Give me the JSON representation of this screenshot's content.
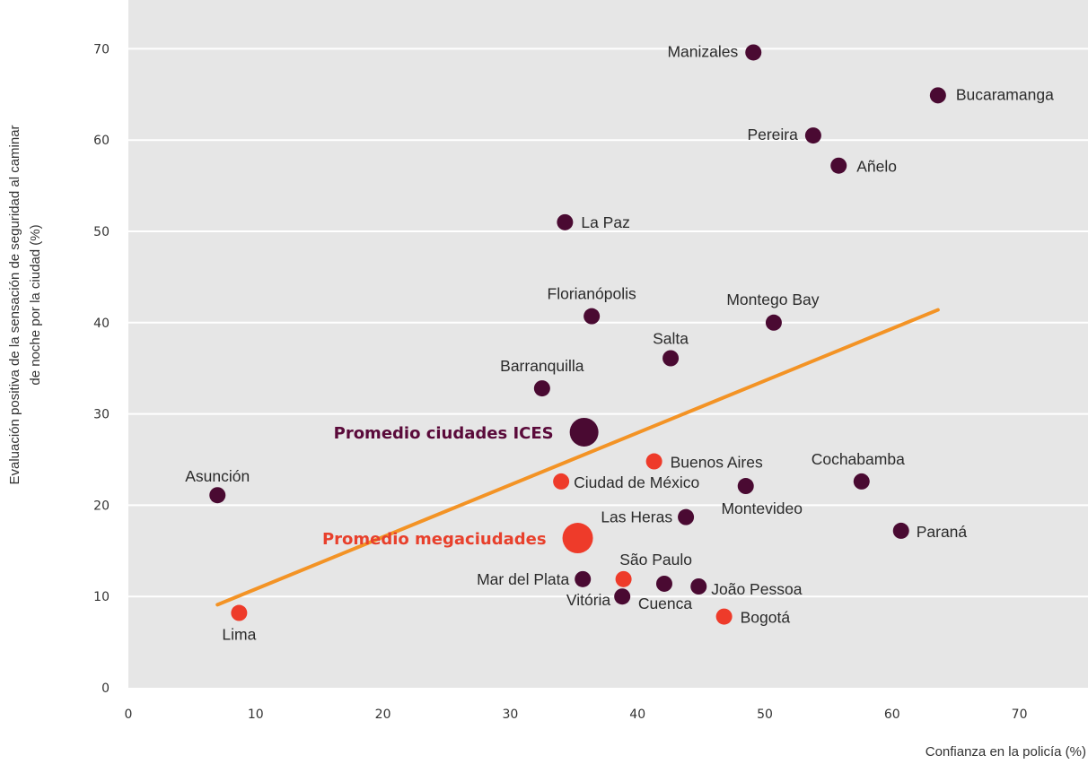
{
  "chart_data": {
    "type": "scatter",
    "xlabel": "Confianza en la policía (%)",
    "ylabel_lines": [
      "Evaluación positiva de la sensación de seguridad al caminar",
      "de noche por la ciudad (%)"
    ],
    "xlim": [
      0,
      76
    ],
    "ylim": [
      0,
      74
    ],
    "xticks": [
      0,
      10,
      20,
      30,
      40,
      50,
      60,
      70
    ],
    "yticks": [
      0,
      10,
      20,
      30,
      40,
      50,
      60,
      70
    ],
    "grid": "horizontal",
    "colors": {
      "ices": "#4a0a32",
      "mega": "#ee3b2a",
      "trend": "#f39325",
      "background": "#e6e6e6",
      "grid": "#ffffff",
      "ices_average_label": "#5a0a3a",
      "mega_average_label": "#e8402c"
    },
    "series": [
      {
        "group": "ices",
        "points": [
          {
            "label": "Manizales",
            "x": 49.1,
            "y": 69.6
          },
          {
            "label": "Bucaramanga",
            "x": 63.6,
            "y": 64.9
          },
          {
            "label": "Pereira",
            "x": 53.8,
            "y": 60.5
          },
          {
            "label": "Añelo",
            "x": 55.8,
            "y": 57.2
          },
          {
            "label": "La Paz",
            "x": 34.3,
            "y": 51.0
          },
          {
            "label": "Florianópolis",
            "x": 36.4,
            "y": 40.7
          },
          {
            "label": "Montego Bay",
            "x": 50.7,
            "y": 40.0
          },
          {
            "label": "Salta",
            "x": 42.6,
            "y": 36.1
          },
          {
            "label": "Barranquilla",
            "x": 32.5,
            "y": 32.8
          },
          {
            "label": "Asunción",
            "x": 7.0,
            "y": 21.1
          },
          {
            "label": "Cochabamba",
            "x": 57.6,
            "y": 22.6
          },
          {
            "label": "Montevideo",
            "x": 48.5,
            "y": 22.1
          },
          {
            "label": "Las Heras",
            "x": 43.8,
            "y": 18.7
          },
          {
            "label": "Paraná",
            "x": 60.7,
            "y": 17.2
          },
          {
            "label": "Mar del Plata",
            "x": 35.7,
            "y": 11.9
          },
          {
            "label": "Cuenca",
            "x": 42.1,
            "y": 11.4
          },
          {
            "label": "João Pessoa",
            "x": 44.8,
            "y": 11.1
          },
          {
            "label": "Vitória",
            "x": 38.8,
            "y": 10.0
          }
        ]
      },
      {
        "group": "mega",
        "points": [
          {
            "label": "Buenos Aires",
            "x": 41.3,
            "y": 24.8
          },
          {
            "label": "Ciudad de México",
            "x": 34.0,
            "y": 22.6
          },
          {
            "label": "São Paulo",
            "x": 38.9,
            "y": 11.9
          },
          {
            "label": "Lima",
            "x": 8.7,
            "y": 8.2
          },
          {
            "label": "Bogotá",
            "x": 46.8,
            "y": 7.8
          }
        ]
      }
    ],
    "averages": [
      {
        "group": "ices",
        "label": "Promedio ciudades ICES",
        "x": 35.8,
        "y": 28.0
      },
      {
        "group": "mega",
        "label": "Promedio megaciudades",
        "x": 35.3,
        "y": 16.4
      }
    ],
    "trendline": {
      "x": [
        7.0,
        63.6
      ],
      "y": [
        9.1,
        41.4
      ]
    }
  }
}
